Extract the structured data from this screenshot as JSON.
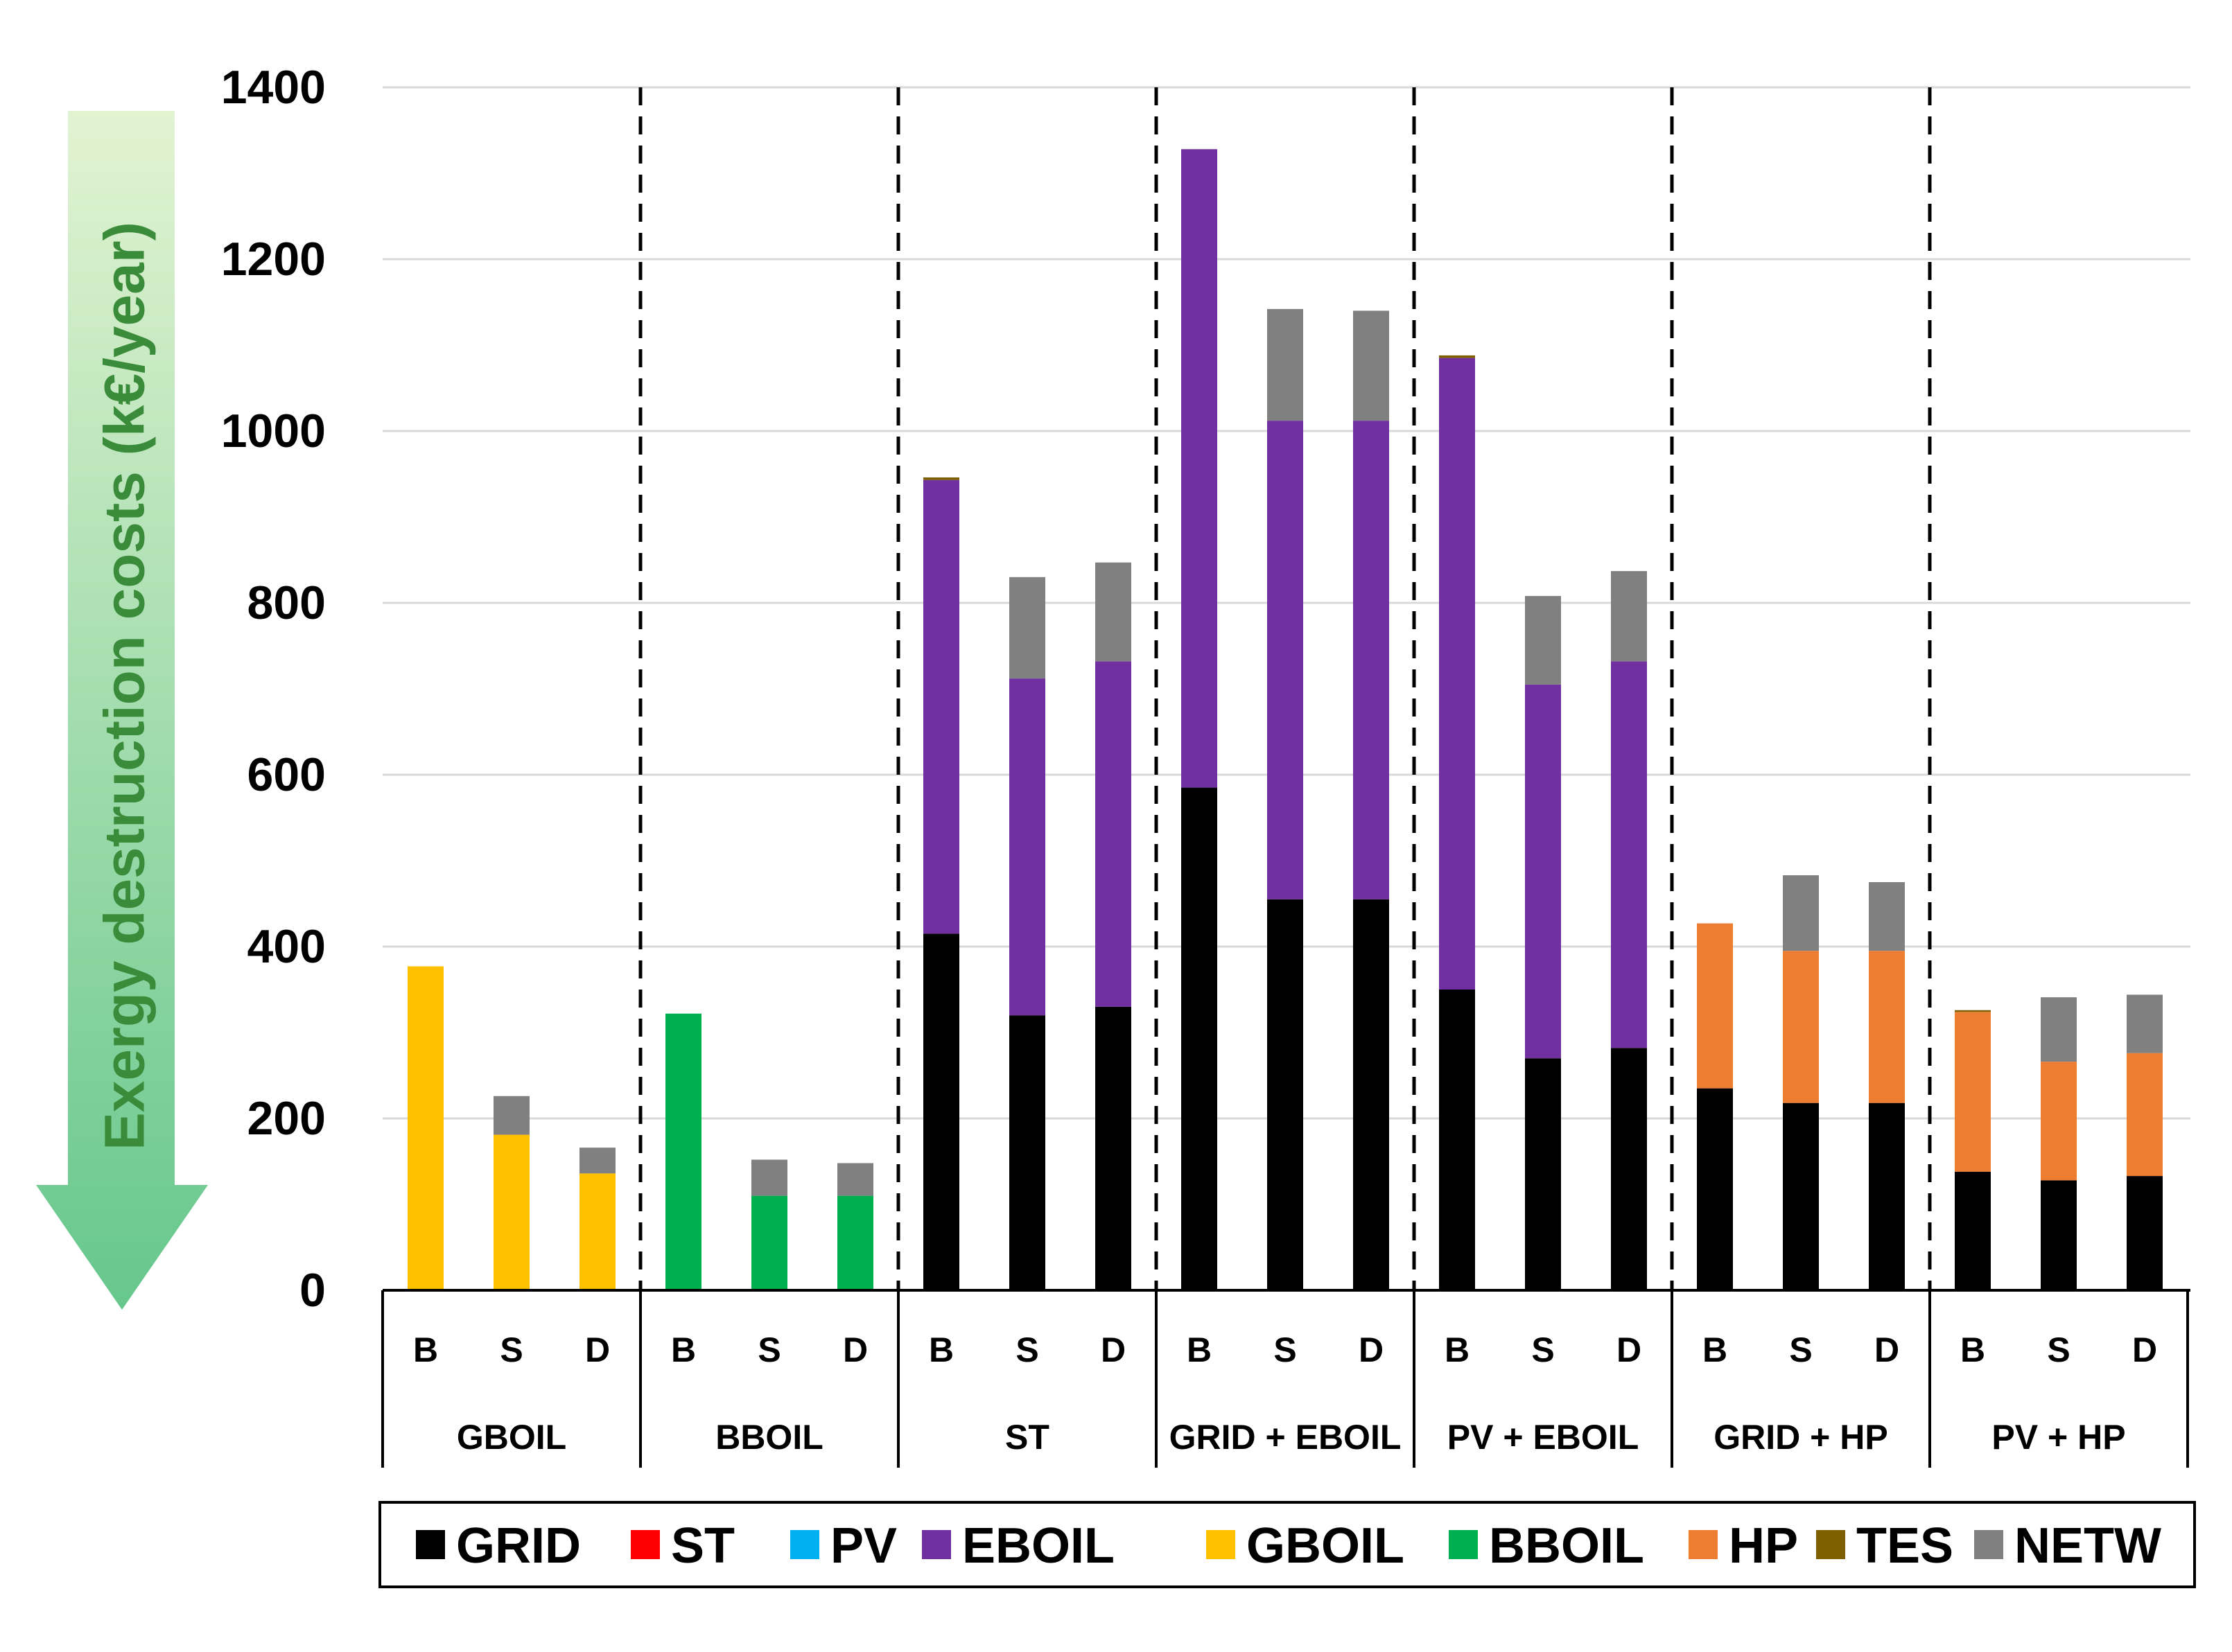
{
  "chart_data": {
    "type": "stacked-bar",
    "ylabel": "Exergy destruction costs (k€/year)",
    "ylim": [
      0,
      1400
    ],
    "yticks": [
      0,
      200,
      400,
      600,
      800,
      1000,
      1200,
      1400
    ],
    "grid": true,
    "legend_position": "bottom",
    "groups": [
      "GBOIL",
      "BBOIL",
      "ST",
      "GRID + EBOIL",
      "PV + EBOIL",
      "GRID + HP",
      "PV + HP"
    ],
    "subcategories": [
      "B",
      "S",
      "D"
    ],
    "series": [
      {
        "name": "GRID",
        "color": "#000000",
        "values": [
          0,
          0,
          0,
          0,
          0,
          0,
          415,
          320,
          330,
          585,
          455,
          455,
          350,
          270,
          282,
          235,
          218,
          218,
          138,
          128,
          133
        ]
      },
      {
        "name": "ST",
        "color": "#ff0000",
        "values": [
          0,
          0,
          0,
          0,
          0,
          0,
          0,
          0,
          0,
          0,
          0,
          0,
          0,
          0,
          0,
          0,
          0,
          0,
          0,
          0,
          0
        ]
      },
      {
        "name": "PV",
        "color": "#00b0f0",
        "values": [
          0,
          0,
          0,
          0,
          0,
          0,
          0,
          0,
          0,
          0,
          0,
          0,
          0,
          0,
          0,
          0,
          0,
          0,
          0,
          0,
          0
        ]
      },
      {
        "name": "EBOIL",
        "color": "#7030a0",
        "values": [
          0,
          0,
          0,
          0,
          0,
          0,
          528,
          392,
          402,
          743,
          557,
          557,
          735,
          435,
          450,
          0,
          0,
          0,
          0,
          0,
          0
        ]
      },
      {
        "name": "GBOIL",
        "color": "#ffc000",
        "values": [
          377,
          181,
          136,
          0,
          0,
          0,
          0,
          0,
          0,
          0,
          0,
          0,
          0,
          0,
          0,
          0,
          0,
          0,
          0,
          0,
          0
        ]
      },
      {
        "name": "BBOIL",
        "color": "#00b050",
        "values": [
          0,
          0,
          0,
          322,
          110,
          110,
          0,
          0,
          0,
          0,
          0,
          0,
          0,
          0,
          0,
          0,
          0,
          0,
          0,
          0,
          0
        ]
      },
      {
        "name": "HP",
        "color": "#ed7d31",
        "values": [
          0,
          0,
          0,
          0,
          0,
          0,
          0,
          0,
          0,
          0,
          0,
          0,
          0,
          0,
          0,
          192,
          177,
          177,
          186,
          138,
          143
        ]
      },
      {
        "name": "TES",
        "color": "#7f6000",
        "values": [
          0,
          0,
          0,
          0,
          0,
          0,
          3,
          0,
          0,
          0,
          0,
          0,
          3,
          0,
          0,
          0,
          0,
          0,
          2,
          0,
          0
        ]
      },
      {
        "name": "NETW",
        "color": "#808080",
        "values": [
          0,
          45,
          30,
          0,
          42,
          38,
          0,
          118,
          115,
          0,
          130,
          128,
          0,
          103,
          105,
          0,
          88,
          80,
          0,
          75,
          68
        ]
      }
    ]
  }
}
